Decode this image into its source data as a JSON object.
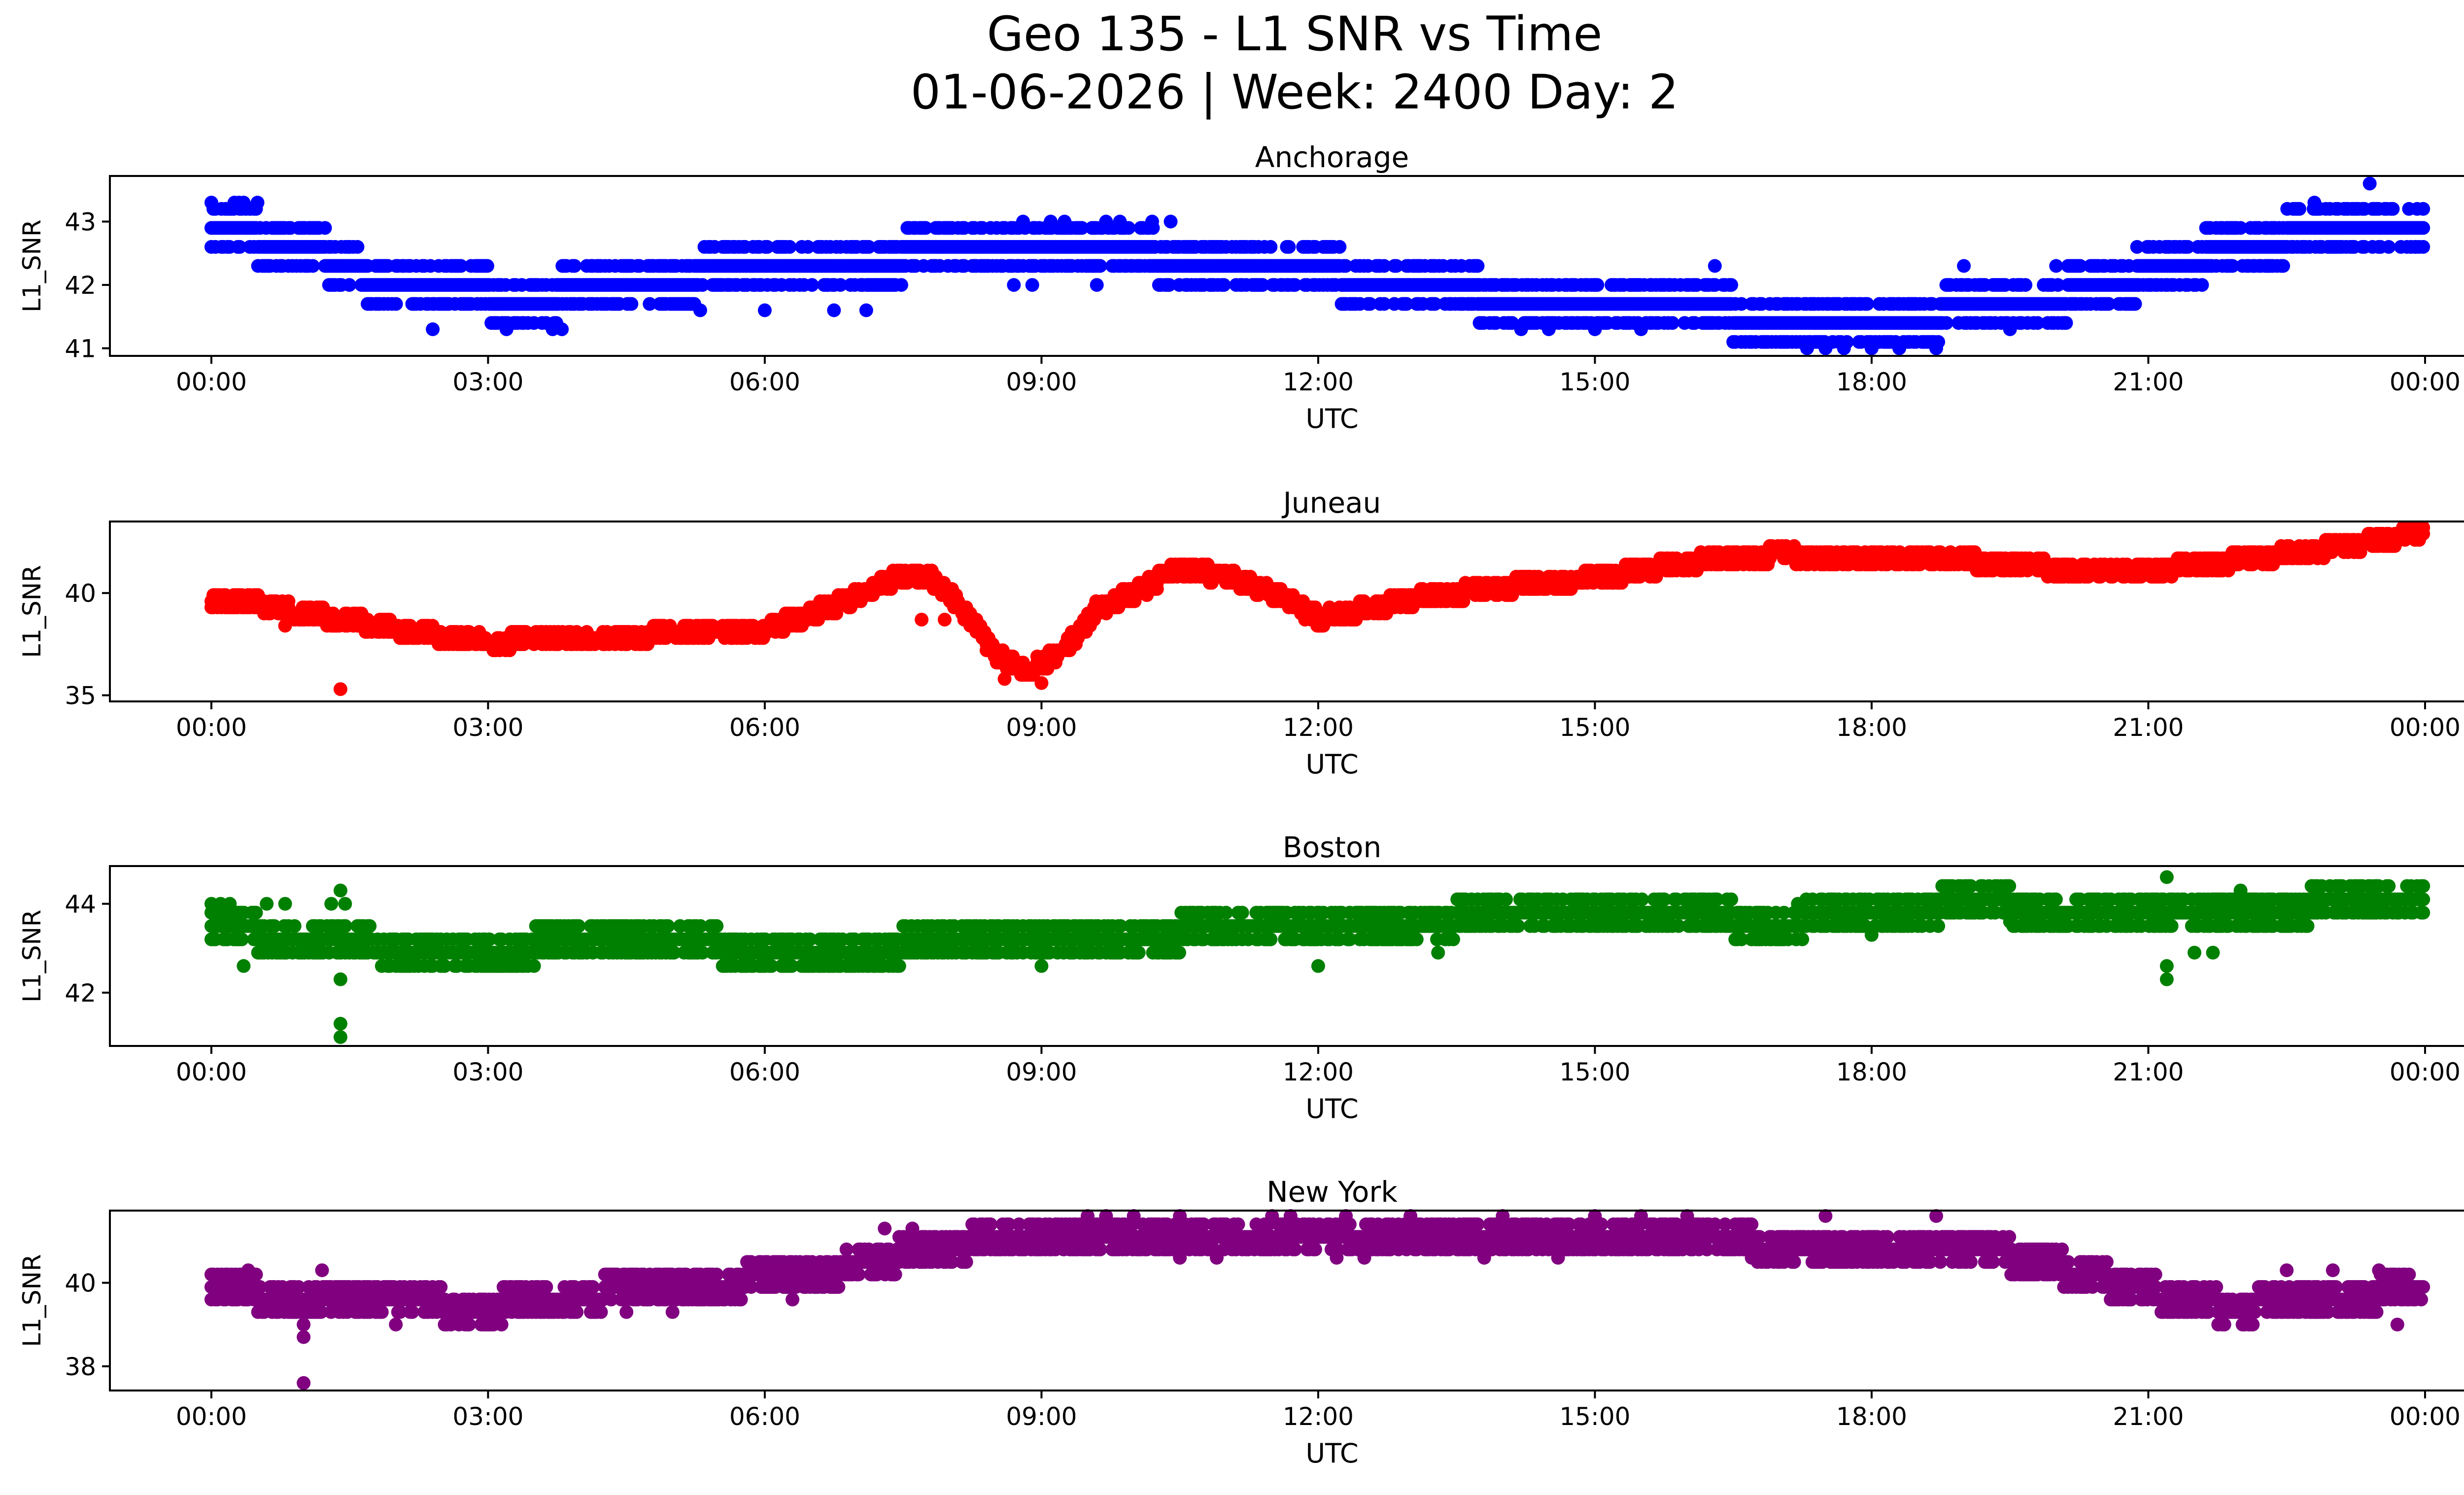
{
  "title_line1": "Geo 135 - L1 SNR vs Time",
  "title_line2": "01-06-2026 | Week: 2400 Day: 2",
  "chart_data": [
    {
      "type": "scatter",
      "title": "Anchorage",
      "xlabel": "UTC",
      "ylabel": "L1_SNR",
      "color": "#0000ff",
      "x_unit": "hours",
      "xlim": [
        -1.1,
        25.4
      ],
      "ylim": [
        40.88,
        43.72
      ],
      "xticks": [
        0,
        3,
        6,
        9,
        12,
        15,
        18,
        21,
        24
      ],
      "xtick_labels": [
        "00:00",
        "03:00",
        "06:00",
        "09:00",
        "12:00",
        "15:00",
        "18:00",
        "21:00",
        "00:00"
      ],
      "yticks": [
        41,
        42,
        43
      ],
      "ytick_labels": [
        "41",
        "42",
        "43"
      ],
      "trend": [
        [
          0,
          42.8
        ],
        [
          1,
          42.7
        ],
        [
          1.5,
          42.2
        ],
        [
          2.5,
          41.9
        ],
        [
          3.5,
          41.8
        ],
        [
          5,
          42.1
        ],
        [
          6,
          42.3
        ],
        [
          7,
          42.4
        ],
        [
          8,
          42.5
        ],
        [
          9,
          42.6
        ],
        [
          10,
          42.5
        ],
        [
          11,
          42.3
        ],
        [
          12,
          42.2
        ],
        [
          13,
          42.0
        ],
        [
          14,
          41.8
        ],
        [
          15,
          41.6
        ],
        [
          16,
          41.6
        ],
        [
          17,
          41.5
        ],
        [
          18,
          41.4
        ],
        [
          19,
          41.6
        ],
        [
          20,
          41.8
        ],
        [
          21,
          42.2
        ],
        [
          22,
          42.6
        ],
        [
          23,
          42.9
        ],
        [
          24,
          43.0
        ]
      ],
      "points": [
        [
          0,
          43.3
        ],
        [
          0.25,
          43.3
        ],
        [
          0.3,
          43.3
        ],
        [
          0.35,
          43.3
        ],
        [
          0.5,
          43.3
        ],
        [
          1.5,
          42.6
        ],
        [
          2.4,
          41.3
        ],
        [
          3.2,
          41.3
        ],
        [
          3.8,
          41.3
        ],
        [
          3.7,
          41.3
        ],
        [
          5.3,
          41.6
        ],
        [
          6.0,
          41.6
        ],
        [
          6.75,
          41.6
        ],
        [
          7.1,
          41.6
        ],
        [
          8.8,
          43.0
        ],
        [
          9.1,
          43.0
        ],
        [
          9.25,
          43.0
        ],
        [
          9.7,
          43.0
        ],
        [
          9.85,
          43.0
        ],
        [
          10.2,
          43.0
        ],
        [
          10.4,
          43.0
        ],
        [
          8.7,
          42.0
        ],
        [
          8.9,
          42.0
        ],
        [
          9.6,
          42.0
        ],
        [
          14.2,
          41.3
        ],
        [
          14.5,
          41.3
        ],
        [
          15.0,
          41.3
        ],
        [
          15.5,
          41.3
        ],
        [
          16.3,
          42.3
        ],
        [
          17.3,
          41.0
        ],
        [
          17.5,
          41.0
        ],
        [
          17.7,
          41.0
        ],
        [
          18.0,
          41.0
        ],
        [
          18.3,
          41.0
        ],
        [
          18.7,
          41.0
        ],
        [
          19.0,
          42.3
        ],
        [
          19.5,
          41.3
        ],
        [
          20.0,
          42.3
        ],
        [
          22.3,
          42.3
        ],
        [
          22.8,
          43.3
        ],
        [
          23.4,
          43.6
        ],
        [
          23.9,
          42.6
        ]
      ]
    },
    {
      "type": "scatter",
      "title": "Juneau",
      "xlabel": "UTC",
      "ylabel": "L1_SNR",
      "color": "#ff0000",
      "x_unit": "hours",
      "xlim": [
        -1.1,
        25.4
      ],
      "ylim": [
        34.7,
        43.5
      ],
      "xticks": [
        0,
        3,
        6,
        9,
        12,
        15,
        18,
        21,
        24
      ],
      "xtick_labels": [
        "00:00",
        "03:00",
        "06:00",
        "09:00",
        "12:00",
        "15:00",
        "18:00",
        "21:00",
        "00:00"
      ],
      "yticks": [
        35,
        40
      ],
      "ytick_labels": [
        "35",
        "40"
      ],
      "trend": [
        [
          0,
          39.7
        ],
        [
          0.5,
          39.5
        ],
        [
          1,
          39.0
        ],
        [
          1.5,
          38.7
        ],
        [
          2,
          38.2
        ],
        [
          3,
          37.6
        ],
        [
          4,
          37.8
        ],
        [
          5,
          38.0
        ],
        [
          6,
          38.2
        ],
        [
          6.5,
          39.0
        ],
        [
          7,
          39.8
        ],
        [
          7.5,
          40.9
        ],
        [
          7.8,
          40.7
        ],
        [
          8.1,
          39.5
        ],
        [
          8.5,
          37.0
        ],
        [
          8.8,
          36.3
        ],
        [
          9.0,
          36.5
        ],
        [
          9.3,
          37.5
        ],
        [
          9.6,
          39.2
        ],
        [
          10,
          40.0
        ],
        [
          10.5,
          41.2
        ],
        [
          11,
          40.8
        ],
        [
          11.5,
          40.0
        ],
        [
          12,
          38.8
        ],
        [
          12.5,
          39.2
        ],
        [
          13,
          39.7
        ],
        [
          14,
          40.3
        ],
        [
          15,
          40.7
        ],
        [
          16,
          41.5
        ],
        [
          17,
          41.9
        ],
        [
          18,
          41.6
        ],
        [
          19,
          41.6
        ],
        [
          20,
          41.2
        ],
        [
          21,
          41.1
        ],
        [
          22,
          41.6
        ],
        [
          23,
          42.2
        ],
        [
          24,
          43.0
        ]
      ],
      "points": [
        [
          1.4,
          35.3
        ],
        [
          7.7,
          38.7
        ],
        [
          7.95,
          38.7
        ],
        [
          0.8,
          38.4
        ],
        [
          8.6,
          35.8
        ],
        [
          9.0,
          35.6
        ]
      ]
    },
    {
      "type": "scatter",
      "title": "Boston",
      "xlabel": "UTC",
      "ylabel": "L1_SNR",
      "color": "#008000",
      "x_unit": "hours",
      "xlim": [
        -1.1,
        25.4
      ],
      "ylim": [
        40.8,
        44.85
      ],
      "xticks": [
        0,
        3,
        6,
        9,
        12,
        15,
        18,
        21,
        24
      ],
      "xtick_labels": [
        "00:00",
        "03:00",
        "06:00",
        "09:00",
        "12:00",
        "15:00",
        "18:00",
        "21:00",
        "00:00"
      ],
      "yticks": [
        42,
        44
      ],
      "ytick_labels": [
        "42",
        "44"
      ],
      "trend": [
        [
          0,
          43.5
        ],
        [
          1,
          43.2
        ],
        [
          2,
          43.0
        ],
        [
          3,
          43.0
        ],
        [
          4,
          43.1
        ],
        [
          5,
          43.1
        ],
        [
          6,
          43.0
        ],
        [
          7,
          43.0
        ],
        [
          8,
          43.1
        ],
        [
          9,
          43.3
        ],
        [
          10,
          43.3
        ],
        [
          11,
          43.4
        ],
        [
          12,
          43.5
        ],
        [
          13,
          43.6
        ],
        [
          14,
          43.7
        ],
        [
          15,
          43.7
        ],
        [
          16,
          43.7
        ],
        [
          17,
          43.6
        ],
        [
          18,
          43.8
        ],
        [
          19,
          44.0
        ],
        [
          20,
          43.9
        ],
        [
          21,
          43.8
        ],
        [
          22,
          43.8
        ],
        [
          23,
          44.0
        ],
        [
          24,
          44.1
        ]
      ],
      "points": [
        [
          0,
          44.0
        ],
        [
          0.1,
          44.0
        ],
        [
          0.2,
          44.0
        ],
        [
          0.6,
          44.0
        ],
        [
          0.8,
          44.0
        ],
        [
          1.3,
          44.0
        ],
        [
          1.4,
          44.3
        ],
        [
          1.45,
          44.0
        ],
        [
          1.4,
          42.3
        ],
        [
          1.4,
          41.3
        ],
        [
          1.4,
          41.0
        ],
        [
          0.8,
          42.9
        ],
        [
          0.35,
          42.6
        ],
        [
          3.2,
          42.6
        ],
        [
          9.0,
          42.6
        ],
        [
          12.0,
          42.6
        ],
        [
          13.3,
          42.9
        ],
        [
          21.2,
          44.6
        ],
        [
          21.2,
          42.3
        ],
        [
          21.2,
          42.6
        ],
        [
          21.5,
          42.9
        ],
        [
          21.7,
          42.9
        ],
        [
          18.0,
          43.3
        ],
        [
          22.0,
          44.3
        ],
        [
          17.2,
          44.0
        ],
        [
          19.5,
          43.6
        ]
      ]
    },
    {
      "type": "scatter",
      "title": "New York",
      "xlabel": "UTC",
      "ylabel": "L1_SNR",
      "color": "#800080",
      "x_unit": "hours",
      "xlim": [
        -1.1,
        25.4
      ],
      "ylim": [
        37.42,
        41.73
      ],
      "xticks": [
        0,
        3,
        6,
        9,
        12,
        15,
        18,
        21,
        24
      ],
      "xtick_labels": [
        "00:00",
        "03:00",
        "06:00",
        "09:00",
        "12:00",
        "15:00",
        "18:00",
        "21:00",
        "00:00"
      ],
      "yticks": [
        38,
        40
      ],
      "ytick_labels": [
        "38",
        "40"
      ],
      "trend": [
        [
          0,
          39.8
        ],
        [
          1,
          39.7
        ],
        [
          2,
          39.5
        ],
        [
          3,
          39.4
        ],
        [
          4,
          39.7
        ],
        [
          5,
          39.9
        ],
        [
          6,
          40.1
        ],
        [
          7,
          40.4
        ],
        [
          7.5,
          40.7
        ],
        [
          8,
          40.9
        ],
        [
          9,
          41.1
        ],
        [
          10,
          41.2
        ],
        [
          11,
          41.2
        ],
        [
          12,
          41.2
        ],
        [
          13,
          41.1
        ],
        [
          14,
          41.1
        ],
        [
          15,
          41.2
        ],
        [
          16,
          41.1
        ],
        [
          17,
          40.9
        ],
        [
          18,
          40.8
        ],
        [
          19,
          40.9
        ],
        [
          20,
          40.4
        ],
        [
          21,
          39.8
        ],
        [
          21.5,
          39.5
        ],
        [
          22,
          39.4
        ],
        [
          23,
          39.7
        ],
        [
          24,
          39.8
        ]
      ],
      "points": [
        [
          1.0,
          37.6
        ],
        [
          1.0,
          38.7
        ],
        [
          1.0,
          39.0
        ],
        [
          0.4,
          40.3
        ],
        [
          1.2,
          40.3
        ],
        [
          0.9,
          39.3
        ],
        [
          2.0,
          39.0
        ],
        [
          3.0,
          39.0
        ],
        [
          4.5,
          39.3
        ],
        [
          5.0,
          39.3
        ],
        [
          6.3,
          39.6
        ],
        [
          7.3,
          41.3
        ],
        [
          7.6,
          41.3
        ],
        [
          9.5,
          41.6
        ],
        [
          9.7,
          41.6
        ],
        [
          10.0,
          41.6
        ],
        [
          10.5,
          41.6
        ],
        [
          11.5,
          41.6
        ],
        [
          11.7,
          41.6
        ],
        [
          12.3,
          41.6
        ],
        [
          13.0,
          41.6
        ],
        [
          14.0,
          41.6
        ],
        [
          15.0,
          41.6
        ],
        [
          15.5,
          41.6
        ],
        [
          16.0,
          41.6
        ],
        [
          17.5,
          41.6
        ],
        [
          18.7,
          41.6
        ],
        [
          10.5,
          40.6
        ],
        [
          10.9,
          40.6
        ],
        [
          12.2,
          40.6
        ],
        [
          12.5,
          40.6
        ],
        [
          13.8,
          40.6
        ],
        [
          14.6,
          40.6
        ],
        [
          16.7,
          40.6
        ],
        [
          17.0,
          40.6
        ],
        [
          23.7,
          39.0
        ],
        [
          22.5,
          40.3
        ],
        [
          23.0,
          40.3
        ],
        [
          23.5,
          40.3
        ]
      ]
    }
  ]
}
